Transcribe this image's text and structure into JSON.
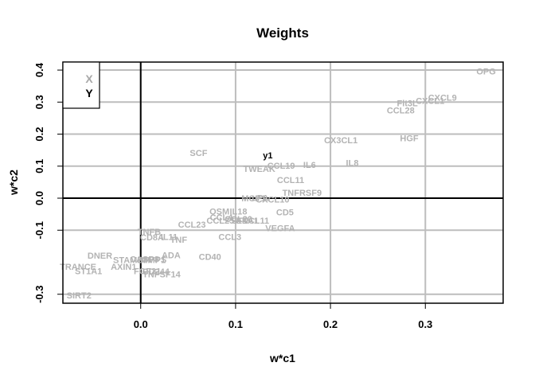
{
  "chart_data": {
    "type": "scatter",
    "title": "Weights",
    "xlabel": "w*c1",
    "ylabel": "w*c2",
    "xlim": [
      -0.082,
      0.382
    ],
    "ylim": [
      -0.328,
      0.425
    ],
    "x_ticks": [
      {
        "value": 0.0,
        "label": "0.0"
      },
      {
        "value": 0.1,
        "label": "0.1"
      },
      {
        "value": 0.2,
        "label": "0.2"
      },
      {
        "value": 0.3,
        "label": "0.3"
      }
    ],
    "y_ticks": [
      {
        "value": 0.4,
        "label": "0.4"
      },
      {
        "value": 0.3,
        "label": "0.3"
      },
      {
        "value": 0.2,
        "label": "0.2"
      },
      {
        "value": 0.1,
        "label": "0.1"
      },
      {
        "value": 0.0,
        "label": "0.0"
      },
      {
        "value": -0.1,
        "label": "-0.1"
      },
      {
        "value": -0.3,
        "label": "-0.3"
      }
    ],
    "grid": true,
    "reference_lines": {
      "x": 0,
      "y": 0
    },
    "legend": {
      "position": "top-left",
      "entries": [
        {
          "label": "X",
          "color": "#a8a8a8"
        },
        {
          "label": "Y",
          "color": "#000000"
        }
      ]
    },
    "series": [
      {
        "name": "X",
        "color": "#b3b3b3",
        "points": [
          {
            "label": "OPG",
            "x": 0.364,
            "y": 0.397
          },
          {
            "label": "CXCL9",
            "x": 0.318,
            "y": 0.314
          },
          {
            "label": "CXCL1",
            "x": 0.305,
            "y": 0.304
          },
          {
            "label": "Flt3L",
            "x": 0.281,
            "y": 0.297
          },
          {
            "label": "CCL28",
            "x": 0.274,
            "y": 0.275
          },
          {
            "label": "CX3CL1",
            "x": 0.211,
            "y": 0.182
          },
          {
            "label": "HGF",
            "x": 0.283,
            "y": 0.188
          },
          {
            "label": "SCF",
            "x": 0.061,
            "y": 0.142
          },
          {
            "label": "IL8",
            "x": 0.223,
            "y": 0.111
          },
          {
            "label": "CCL19",
            "x": 0.148,
            "y": 0.102
          },
          {
            "label": "IL6",
            "x": 0.178,
            "y": 0.104
          },
          {
            "label": "TWEAK",
            "x": 0.125,
            "y": 0.092
          },
          {
            "label": "CCL11",
            "x": 0.158,
            "y": 0.057
          },
          {
            "label": "TNFRSF9",
            "x": 0.17,
            "y": 0.017
          },
          {
            "label": "MCP1",
            "x": 0.119,
            "y": 0.0
          },
          {
            "label": "uPA",
            "x": 0.126,
            "y": 0.001
          },
          {
            "label": "CXCL10",
            "x": 0.139,
            "y": -0.004
          },
          {
            "label": "CD5",
            "x": 0.152,
            "y": -0.044
          },
          {
            "label": "OSM",
            "x": 0.083,
            "y": -0.041
          },
          {
            "label": "IL18",
            "x": 0.103,
            "y": -0.041
          },
          {
            "label": "CCL4",
            "x": 0.085,
            "y": -0.06
          },
          {
            "label": "CCL25",
            "x": 0.084,
            "y": -0.069
          },
          {
            "label": "CCL20",
            "x": 0.103,
            "y": -0.065
          },
          {
            "label": "ST1A1",
            "x": 0.11,
            "y": -0.069
          },
          {
            "label": "ENCL11",
            "x": 0.118,
            "y": -0.069
          },
          {
            "label": "CCL23",
            "x": 0.054,
            "y": -0.082
          },
          {
            "label": "VEGFA",
            "x": 0.147,
            "y": -0.093
          },
          {
            "label": "TNFB",
            "x": 0.009,
            "y": -0.104
          },
          {
            "label": "CCL3",
            "x": 0.094,
            "y": -0.121
          },
          {
            "label": "CD8A",
            "x": 0.012,
            "y": -0.122
          },
          {
            "label": "IL11",
            "x": 0.03,
            "y": -0.121
          },
          {
            "label": "TNF",
            "x": 0.04,
            "y": -0.129
          },
          {
            "label": "DNER",
            "x": -0.043,
            "y": -0.179
          },
          {
            "label": "ADA",
            "x": 0.032,
            "y": -0.178
          },
          {
            "label": "CD40",
            "x": 0.073,
            "y": -0.183
          },
          {
            "label": "STAMBP",
            "x": -0.01,
            "y": -0.193
          },
          {
            "label": "CASP8",
            "x": 0.004,
            "y": -0.19
          },
          {
            "label": "MMP1",
            "x": 0.013,
            "y": -0.193
          },
          {
            "label": "PPS",
            "x": 0.018,
            "y": -0.191
          },
          {
            "label": "TRANCE",
            "x": -0.066,
            "y": -0.214
          },
          {
            "label": "AXIN1",
            "x": -0.018,
            "y": -0.214
          },
          {
            "label": "CD244",
            "x": 0.016,
            "y": -0.229
          },
          {
            "label": "FGF21",
            "x": 0.007,
            "y": -0.227
          },
          {
            "label": "TNFSF14",
            "x": 0.022,
            "y": -0.237
          },
          {
            "label": "ST1A1",
            "x": -0.055,
            "y": -0.227
          },
          {
            "label": "SIRT2",
            "x": -0.065,
            "y": -0.303
          }
        ]
      },
      {
        "name": "Y",
        "color": "#000000",
        "points": [
          {
            "label": "y1",
            "x": 0.134,
            "y": 0.134
          }
        ]
      }
    ]
  }
}
